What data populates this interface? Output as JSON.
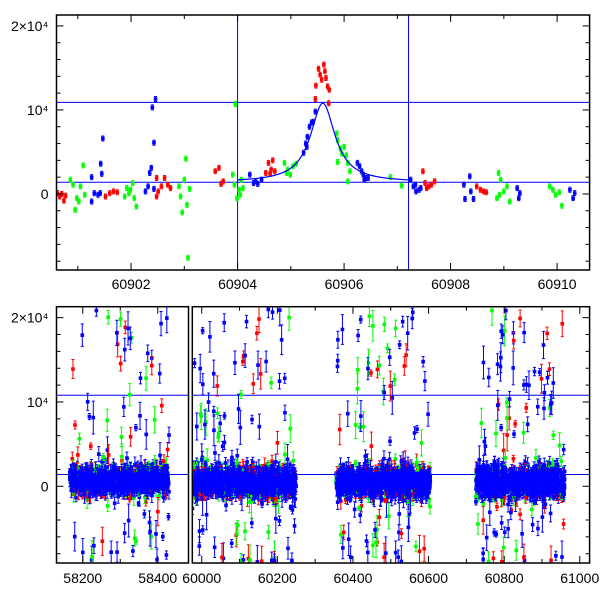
{
  "chart_data": [
    {
      "type": "scatter",
      "title": "",
      "xlabel": "",
      "ylabel": "",
      "xlim": [
        60900.6,
        60910.61
      ],
      "ylim": [
        -9050,
        21300
      ],
      "x_ticks": [
        {
          "value": 60902,
          "label": "60902"
        },
        {
          "value": 60904,
          "label": "60904"
        },
        {
          "value": 60906,
          "label": "60906"
        },
        {
          "value": 60908,
          "label": "60908"
        },
        {
          "value": 60910,
          "label": "60910"
        }
      ],
      "x_minor_step": 1,
      "y_ticks": [
        {
          "value": 0,
          "label": "0"
        },
        {
          "value": 10000,
          "label": "10⁴"
        },
        {
          "value": 20000,
          "label": "2×10⁴"
        }
      ],
      "y_minor_step": 2000,
      "grid": false,
      "colors": [
        "#ff0000",
        "#00ff00",
        "#0000ff"
      ],
      "series_names": [
        "red",
        "green",
        "blue"
      ],
      "vlines": [
        60904.0,
        60907.21
      ],
      "hlines": [
        10900,
        1400
      ],
      "line_color": "#0000ff",
      "model_curve": {
        "type": "lorentzian",
        "baseline": 1400,
        "amplitude": 9400,
        "center": 60905.6,
        "width": 0.28,
        "x_range": [
          60904.0,
          60907.2
        ]
      },
      "points": [
        [
          60900.62,
          100,
          0
        ],
        [
          60900.66,
          -300,
          0
        ],
        [
          60900.7,
          0,
          0
        ],
        [
          60900.74,
          -800,
          0
        ],
        [
          60900.77,
          -200,
          0
        ],
        [
          60900.86,
          1700,
          1
        ],
        [
          60900.91,
          1100,
          1
        ],
        [
          60900.95,
          -1900,
          1
        ],
        [
          60900.98,
          -500,
          1
        ],
        [
          60901.05,
          900,
          1
        ],
        [
          60901.1,
          3400,
          1
        ],
        [
          60901.13,
          -100,
          1
        ],
        [
          60901.02,
          -900,
          1
        ],
        [
          60901.26,
          2000,
          2
        ],
        [
          60901.26,
          -900,
          2
        ],
        [
          60901.31,
          100,
          2
        ],
        [
          60901.38,
          -100,
          2
        ],
        [
          60901.43,
          3600,
          2
        ],
        [
          60901.45,
          2400,
          2
        ],
        [
          60901.47,
          6600,
          2
        ],
        [
          60901.42,
          100,
          2
        ],
        [
          60901.52,
          -300,
          0
        ],
        [
          60901.6,
          100,
          0
        ],
        [
          60901.67,
          300,
          0
        ],
        [
          60901.74,
          200,
          0
        ],
        [
          60901.88,
          -300,
          1
        ],
        [
          60901.92,
          700,
          1
        ],
        [
          60901.99,
          500,
          1
        ],
        [
          60902.03,
          1300,
          1
        ],
        [
          60902.06,
          -500,
          1
        ],
        [
          60902.1,
          -1500,
          1
        ],
        [
          60901.96,
          100,
          1
        ],
        [
          60902.27,
          300,
          2
        ],
        [
          60902.32,
          900,
          2
        ],
        [
          60902.35,
          2500,
          2
        ],
        [
          60902.38,
          3100,
          2
        ],
        [
          60902.4,
          10300,
          2
        ],
        [
          60902.46,
          11300,
          2
        ],
        [
          60902.43,
          6100,
          2
        ],
        [
          60902.43,
          600,
          2
        ],
        [
          60902.48,
          -300,
          0
        ],
        [
          60902.51,
          300,
          0
        ],
        [
          60902.57,
          900,
          0
        ],
        [
          60902.63,
          1900,
          0
        ],
        [
          60902.69,
          1100,
          0
        ],
        [
          60902.74,
          700,
          0
        ],
        [
          60902.48,
          1900,
          0
        ],
        [
          60902.9,
          900,
          1
        ],
        [
          60902.93,
          -300,
          1
        ],
        [
          60902.96,
          -2200,
          1
        ],
        [
          60903.0,
          1700,
          1
        ],
        [
          60903.03,
          4200,
          1
        ],
        [
          60903.05,
          -1300,
          1
        ],
        [
          60903.1,
          600,
          1
        ],
        [
          60903.07,
          -7600,
          1
        ],
        [
          60903.58,
          2700,
          0
        ],
        [
          60903.65,
          3100,
          0
        ],
        [
          60903.69,
          1200,
          0
        ],
        [
          60903.73,
          1500,
          0
        ],
        [
          60903.91,
          2300,
          1
        ],
        [
          60903.94,
          1100,
          1
        ],
        [
          60903.96,
          10700,
          1
        ],
        [
          60903.99,
          -500,
          1
        ],
        [
          60904.03,
          500,
          1
        ],
        [
          60904.07,
          1700,
          1
        ],
        [
          60904.1,
          700,
          1
        ],
        [
          60904.05,
          -100,
          1
        ],
        [
          60904.23,
          2300,
          2
        ],
        [
          60904.3,
          1300,
          2
        ],
        [
          60904.38,
          1200,
          2
        ],
        [
          60904.45,
          1700,
          2
        ],
        [
          60904.34,
          1500,
          2
        ],
        [
          60904.53,
          2500,
          0
        ],
        [
          60904.58,
          3700,
          0
        ],
        [
          60904.63,
          2900,
          0
        ],
        [
          60904.66,
          4000,
          0
        ],
        [
          60904.7,
          2700,
          0
        ],
        [
          60904.61,
          2400,
          0
        ],
        [
          60904.88,
          3700,
          1
        ],
        [
          60904.94,
          2900,
          1
        ],
        [
          60904.99,
          2300,
          1
        ],
        [
          60905.04,
          3300,
          1
        ],
        [
          60905.1,
          3600,
          1
        ],
        [
          60904.92,
          2500,
          1
        ],
        [
          60905.24,
          4900,
          2
        ],
        [
          60905.28,
          6000,
          2
        ],
        [
          60905.31,
          6800,
          2
        ],
        [
          60905.35,
          8000,
          2
        ],
        [
          60905.39,
          8500,
          2
        ],
        [
          60905.42,
          8600,
          2
        ],
        [
          60905.46,
          9800,
          2
        ],
        [
          60905.3,
          5600,
          2
        ],
        [
          60905.46,
          11300,
          0
        ],
        [
          60905.47,
          12900,
          0
        ],
        [
          60905.52,
          14900,
          0
        ],
        [
          60905.55,
          14200,
          0
        ],
        [
          60905.58,
          13600,
          0
        ],
        [
          60905.62,
          15400,
          0
        ],
        [
          60905.64,
          14600,
          0
        ],
        [
          60905.66,
          13800,
          0
        ],
        [
          60905.69,
          12800,
          0
        ],
        [
          60905.72,
          12400,
          0
        ],
        [
          60905.71,
          10800,
          0
        ],
        [
          60905.86,
          7200,
          1
        ],
        [
          60905.88,
          6400,
          1
        ],
        [
          60905.93,
          5400,
          1
        ],
        [
          60905.96,
          4800,
          1
        ],
        [
          60906.0,
          5600,
          1
        ],
        [
          60906.04,
          4600,
          1
        ],
        [
          60905.88,
          3800,
          1
        ],
        [
          60906.07,
          3700,
          1
        ],
        [
          60906.11,
          2700,
          1
        ],
        [
          60906.07,
          1500,
          1
        ],
        [
          60906.25,
          3700,
          2
        ],
        [
          60906.29,
          3300,
          2
        ],
        [
          60906.33,
          2700,
          2
        ],
        [
          60906.36,
          2300,
          2
        ],
        [
          60906.4,
          1900,
          2
        ],
        [
          60906.45,
          1900,
          2
        ],
        [
          60906.38,
          1700,
          2
        ],
        [
          60906.87,
          2000,
          1
        ],
        [
          60907.08,
          1000,
          1
        ],
        [
          60907.25,
          1700,
          2
        ],
        [
          60907.3,
          900,
          2
        ],
        [
          60907.35,
          300,
          2
        ],
        [
          60907.41,
          500,
          2
        ],
        [
          60907.44,
          700,
          2
        ],
        [
          60907.34,
          1100,
          2
        ],
        [
          60907.48,
          2700,
          0
        ],
        [
          60907.52,
          1300,
          0
        ],
        [
          60907.59,
          900,
          0
        ],
        [
          60907.64,
          1100,
          0
        ],
        [
          60907.7,
          1500,
          0
        ],
        [
          60907.55,
          700,
          0
        ],
        [
          60908.25,
          1100,
          2
        ],
        [
          60908.27,
          -600,
          2
        ],
        [
          60908.36,
          2100,
          2
        ],
        [
          60908.38,
          300,
          2
        ],
        [
          60908.43,
          -600,
          2
        ],
        [
          60908.49,
          900,
          0
        ],
        [
          60908.56,
          500,
          0
        ],
        [
          60908.62,
          300,
          0
        ],
        [
          60908.67,
          200,
          0
        ],
        [
          60908.87,
          -500,
          1
        ],
        [
          60908.9,
          2500,
          1
        ],
        [
          60908.94,
          1700,
          1
        ],
        [
          60909.0,
          300,
          1
        ],
        [
          60909.06,
          900,
          1
        ],
        [
          60909.11,
          -900,
          1
        ],
        [
          60908.92,
          -100,
          1
        ],
        [
          60909.25,
          700,
          2
        ],
        [
          60909.28,
          -500,
          2
        ],
        [
          60909.3,
          100,
          2
        ],
        [
          60909.86,
          900,
          1
        ],
        [
          60909.92,
          500,
          1
        ],
        [
          60909.97,
          -100,
          1
        ],
        [
          60910.04,
          200,
          1
        ],
        [
          60910.09,
          -1400,
          1
        ],
        [
          60910.24,
          500,
          2
        ],
        [
          60910.3,
          -500,
          2
        ],
        [
          60910.33,
          100,
          2
        ]
      ]
    },
    {
      "type": "scatter",
      "title": "",
      "xlabel": "",
      "ylabel": "",
      "broken_x_axis": true,
      "panels": [
        {
          "xlim": [
            58130,
            58482
          ],
          "x_ticks": [
            {
              "value": 58200,
              "label": "58200"
            },
            {
              "value": 58400,
              "label": "58400"
            }
          ]
        },
        {
          "xlim": [
            59975,
            61026
          ],
          "x_ticks": [
            {
              "value": 60000,
              "label": "60000"
            },
            {
              "value": 60200,
              "label": "60200"
            },
            {
              "value": 60400,
              "label": "60400"
            },
            {
              "value": 60600,
              "label": "60600"
            },
            {
              "value": 60800,
              "label": "60800"
            },
            {
              "value": 61000,
              "label": "61000"
            }
          ]
        }
      ],
      "x_minor_step": 100,
      "ylim": [
        -9100,
        21300
      ],
      "y_ticks": [
        {
          "value": 0,
          "label": "0"
        },
        {
          "value": 10000,
          "label": "10⁴"
        },
        {
          "value": 20000,
          "label": "2×10⁴"
        }
      ],
      "y_minor_step": 2000,
      "hlines": [
        10800,
        1400
      ],
      "colors": [
        "#ff0000",
        "#00ff00",
        "#0000ff"
      ],
      "seasons": [
        {
          "range": [
            58165,
            58430
          ],
          "n": 700,
          "median": 700,
          "scatter": 900
        },
        {
          "range": [
            59972,
            60250
          ],
          "n": 800,
          "median": 500,
          "scatter": 1000
        },
        {
          "range": [
            60355,
            60605
          ],
          "n": 750,
          "median": 500,
          "scatter": 1000
        },
        {
          "range": [
            60725,
            60960
          ],
          "n": 750,
          "median": 500,
          "scatter": 1000
        }
      ],
      "outlier_fraction": 0.12,
      "outlier_range": [
        -9000,
        21000
      ]
    }
  ]
}
